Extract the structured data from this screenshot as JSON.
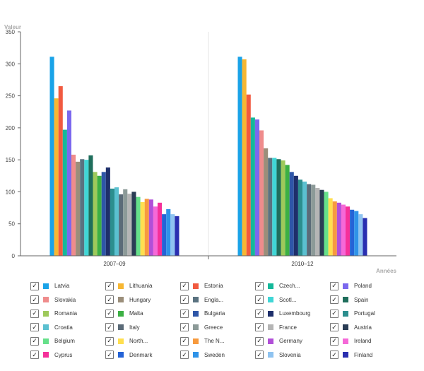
{
  "chart_data": {
    "type": "bar",
    "ylabel": "Valeur",
    "xlabel": "Années",
    "categories": [
      "2007–09",
      "2010–12"
    ],
    "ylim": [
      0,
      350
    ],
    "yticks": [
      0,
      50,
      100,
      150,
      200,
      250,
      300,
      350
    ],
    "grid": false,
    "legend_position": "bottom",
    "series": [
      {
        "name": "Latvia",
        "color": "#1aa3e8",
        "values": [
          311,
          311
        ]
      },
      {
        "name": "Lithuania",
        "color": "#f7b733",
        "values": [
          246,
          307
        ]
      },
      {
        "name": "Estonia",
        "color": "#f15a40",
        "values": [
          265,
          252
        ]
      },
      {
        "name": "Czech...",
        "color": "#14b89a",
        "values": [
          197,
          216
        ]
      },
      {
        "name": "Poland",
        "color": "#7b68ee",
        "values": [
          227,
          213
        ]
      },
      {
        "name": "Slovakia",
        "color": "#ef8c8c",
        "values": [
          158,
          196
        ]
      },
      {
        "name": "Hungary",
        "color": "#9b8e7a",
        "values": [
          147,
          168
        ]
      },
      {
        "name": "Engla...",
        "color": "#5a7280",
        "values": [
          151,
          153
        ]
      },
      {
        "name": "Scotl...",
        "color": "#40d6d6",
        "values": [
          150,
          153
        ]
      },
      {
        "name": "Spain",
        "color": "#1f6e5c",
        "values": [
          157,
          151
        ]
      },
      {
        "name": "Romania",
        "color": "#9ec95b",
        "values": [
          131,
          149
        ]
      },
      {
        "name": "Malta",
        "color": "#3cb044",
        "values": [
          125,
          142
        ]
      },
      {
        "name": "Bulgaria",
        "color": "#2e56a8",
        "values": [
          131,
          131
        ]
      },
      {
        "name": "Luxembourg",
        "color": "#1e2f6b",
        "values": [
          138,
          125
        ]
      },
      {
        "name": "Portugal",
        "color": "#2c8e8e",
        "values": [
          105,
          119
        ]
      },
      {
        "name": "Croatia",
        "color": "#5bc0d0",
        "values": [
          107,
          116
        ]
      },
      {
        "name": "Italy",
        "color": "#5b6b78",
        "values": [
          96,
          112
        ]
      },
      {
        "name": "Greece",
        "color": "#8c9a98",
        "values": [
          104,
          111
        ]
      },
      {
        "name": "France",
        "color": "#b5b5b5",
        "values": [
          97,
          106
        ]
      },
      {
        "name": "Austria",
        "color": "#2b3d55",
        "values": [
          100,
          103
        ]
      },
      {
        "name": "Belgium",
        "color": "#66e08a",
        "values": [
          92,
          100
        ]
      },
      {
        "name": "North...",
        "color": "#ffdf4f",
        "values": [
          84,
          90
        ]
      },
      {
        "name": "The N...",
        "color": "#f79a3e",
        "values": [
          89,
          85
        ]
      },
      {
        "name": "Germany",
        "color": "#b14fd8",
        "values": [
          88,
          83
        ]
      },
      {
        "name": "Ireland",
        "color": "#f569d8",
        "values": [
          77,
          80
        ]
      },
      {
        "name": "Cyprus",
        "color": "#f5309a",
        "values": [
          83,
          77
        ]
      },
      {
        "name": "Denmark",
        "color": "#2563d6",
        "values": [
          65,
          72
        ]
      },
      {
        "name": "Sweden",
        "color": "#2f93e8",
        "values": [
          73,
          70
        ]
      },
      {
        "name": "Slovenia",
        "color": "#8fc3f0",
        "values": [
          65,
          65
        ]
      },
      {
        "name": "Finland",
        "color": "#2a2fb0",
        "values": [
          62,
          59
        ]
      }
    ]
  }
}
